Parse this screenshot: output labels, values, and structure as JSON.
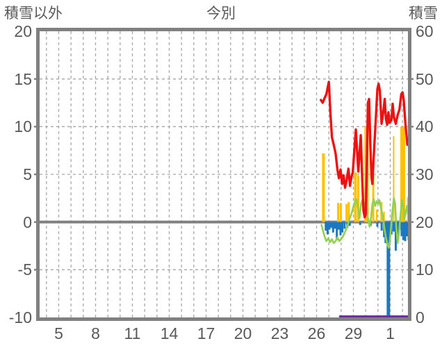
{
  "header": {
    "left_axis_label": "積雪以外",
    "title": "今別",
    "right_axis_label": "積雪"
  },
  "colors": {
    "frame": "#808080",
    "gridline": "#a6a6a6",
    "zero_line": "#808080",
    "text": "#595959",
    "red": "#ee1111",
    "green": "#92d050",
    "blue": "#1b78c3",
    "yellow": "#ffc000",
    "purple": "#7030a0"
  },
  "chart_data": {
    "type": "combo line+bar",
    "title": "今別",
    "left_axis": {
      "label": "積雪以外",
      "min": -10,
      "max": 20,
      "tick_values": [
        20,
        15,
        10,
        5,
        0,
        -5,
        -10
      ],
      "grid_values": [
        15,
        10,
        5,
        -5
      ],
      "zero_value": 0
    },
    "right_axis": {
      "label": "積雪",
      "min": 0,
      "max": 60,
      "tick_values": [
        60,
        50,
        40,
        30,
        20,
        10,
        0
      ]
    },
    "x_axis": {
      "ticks": [
        {
          "day": 5,
          "label": "5"
        },
        {
          "day": 8,
          "label": "8"
        },
        {
          "day": 11,
          "label": "11"
        },
        {
          "day": 14,
          "label": "14"
        },
        {
          "day": 17,
          "label": "17"
        },
        {
          "day": 20,
          "label": "20"
        },
        {
          "day": 23,
          "label": "23"
        },
        {
          "day": 26,
          "label": "26"
        },
        {
          "day": 29,
          "label": "29"
        },
        {
          "day": 32,
          "label": "1"
        }
      ],
      "grid_day_start": 4,
      "grid_day_end": 33,
      "domain": [
        3.44,
        33.44
      ]
    },
    "series": [
      {
        "name": "yellow-bars",
        "type": "bar",
        "axis": "left",
        "color": "#ffc000",
        "default_width": 3,
        "points": [
          [
            26.56,
            7.2,
            4
          ],
          [
            27.76,
            2.0,
            3
          ],
          [
            27.98,
            2.0,
            3
          ],
          [
            28.44,
            1.9,
            3
          ],
          [
            28.62,
            2.1,
            3
          ],
          [
            29.17,
            5.2,
            4
          ],
          [
            29.4,
            4.9,
            3
          ],
          [
            30.07,
            10.0,
            6
          ],
          [
            30.62,
            5.0,
            3
          ],
          [
            30.9,
            1.3,
            2
          ],
          [
            31.28,
            2.1,
            3
          ],
          [
            31.5,
            1.1,
            2
          ],
          [
            32.28,
            9.0,
            2
          ],
          [
            33.02,
            10.0,
            7
          ],
          [
            33.45,
            2.6,
            3
          ]
        ]
      },
      {
        "name": "blue-bars",
        "type": "bar",
        "axis": "left",
        "color": "#1b78c3",
        "default_width": 3,
        "points": [
          [
            26.75,
            -0.9
          ],
          [
            26.9,
            -1.3
          ],
          [
            27.05,
            -0.8
          ],
          [
            27.2,
            -0.6
          ],
          [
            27.35,
            -1.1
          ],
          [
            27.5,
            -0.7
          ],
          [
            27.65,
            -1.9
          ],
          [
            27.8,
            -0.8
          ],
          [
            27.95,
            -1.4
          ],
          [
            28.1,
            -1.1
          ],
          [
            28.28,
            -0.7
          ],
          [
            28.5,
            -0.6
          ],
          [
            28.7,
            -0.4
          ],
          [
            29.55,
            -0.3
          ],
          [
            30.4,
            -0.4
          ],
          [
            30.95,
            -0.5
          ],
          [
            31.3,
            -0.9
          ],
          [
            31.5,
            -1.6
          ],
          [
            31.62,
            -2.2
          ],
          [
            31.75,
            -2.3
          ],
          [
            31.85,
            -9.85,
            5
          ],
          [
            31.97,
            -2.1
          ],
          [
            32.1,
            -1.3
          ],
          [
            32.28,
            -1.0
          ],
          [
            32.45,
            -3.0
          ],
          [
            32.6,
            -1.3
          ],
          [
            32.75,
            -0.8
          ],
          [
            32.93,
            -1.5
          ],
          [
            33.08,
            -1.9
          ],
          [
            33.22,
            -2.0
          ],
          [
            33.36,
            -1.5
          ],
          [
            33.5,
            -1.9
          ]
        ]
      },
      {
        "name": "purple-line",
        "type": "line",
        "axis": "right",
        "color": "#7030a0",
        "width": 3,
        "points": [
          [
            27.9,
            0
          ],
          [
            33.5,
            0
          ]
        ]
      },
      {
        "name": "green-line",
        "type": "line",
        "axis": "left",
        "color": "#92d050",
        "width": 2.6,
        "points": [
          [
            26.4,
            -0.3
          ],
          [
            26.52,
            -0.9
          ],
          [
            26.65,
            -1.5
          ],
          [
            26.8,
            -2.0
          ],
          [
            26.95,
            -1.7
          ],
          [
            27.1,
            -2.1
          ],
          [
            27.25,
            -1.8
          ],
          [
            27.4,
            -2.2
          ],
          [
            27.55,
            -2.0
          ],
          [
            27.7,
            -1.6
          ],
          [
            27.85,
            -2.0
          ],
          [
            28.0,
            -1.8
          ],
          [
            28.15,
            -1.5
          ],
          [
            28.3,
            -1.1
          ],
          [
            28.42,
            -0.7
          ],
          [
            28.55,
            -0.2
          ],
          [
            28.7,
            0.4
          ],
          [
            28.85,
            0.9
          ],
          [
            29.0,
            1.6
          ],
          [
            29.12,
            2.1
          ],
          [
            29.25,
            2.4
          ],
          [
            29.38,
            1.5
          ],
          [
            29.5,
            0.4
          ],
          [
            29.62,
            1.9
          ],
          [
            29.72,
            2.3
          ],
          [
            29.85,
            1.6
          ],
          [
            29.95,
            2.1
          ],
          [
            30.08,
            1.2
          ],
          [
            30.2,
            0.3
          ],
          [
            30.32,
            -0.5
          ],
          [
            30.45,
            0.6
          ],
          [
            30.55,
            1.9
          ],
          [
            30.65,
            2.4
          ],
          [
            30.78,
            1.7
          ],
          [
            30.9,
            2.2
          ],
          [
            31.02,
            1.9
          ],
          [
            31.12,
            2.3
          ],
          [
            31.25,
            1.4
          ],
          [
            31.4,
            0.7
          ],
          [
            31.52,
            -0.6
          ],
          [
            31.65,
            -1.6
          ],
          [
            31.78,
            -2.4
          ],
          [
            31.88,
            -2.7
          ],
          [
            31.97,
            -1.9
          ],
          [
            32.07,
            -0.5
          ],
          [
            32.18,
            1.2
          ],
          [
            32.3,
            2.5
          ],
          [
            32.4,
            1.9
          ],
          [
            32.5,
            -0.6
          ],
          [
            32.6,
            -2.2
          ],
          [
            32.7,
            -1.3
          ],
          [
            32.82,
            0.5
          ],
          [
            32.95,
            2.3
          ],
          [
            33.05,
            1.8
          ],
          [
            33.15,
            0.3
          ],
          [
            33.25,
            0.9
          ],
          [
            33.35,
            1.7
          ],
          [
            33.45,
            0.8
          ],
          [
            33.55,
            1.1
          ]
        ]
      },
      {
        "name": "red-line",
        "type": "line",
        "axis": "left",
        "color": "#ee1111",
        "width": 3.4,
        "points": [
          [
            26.35,
            12.8
          ],
          [
            26.5,
            12.5
          ],
          [
            26.62,
            12.9
          ],
          [
            26.8,
            13.4
          ],
          [
            27.0,
            14.7
          ],
          [
            27.12,
            11.6
          ],
          [
            27.25,
            8.9
          ],
          [
            27.4,
            8.1
          ],
          [
            27.55,
            7.2
          ],
          [
            27.7,
            5.5
          ],
          [
            27.82,
            4.6
          ],
          [
            27.95,
            5.5
          ],
          [
            28.08,
            4.0
          ],
          [
            28.2,
            4.9
          ],
          [
            28.32,
            3.6
          ],
          [
            28.45,
            4.4
          ],
          [
            28.6,
            5.6
          ],
          [
            28.72,
            3.8
          ],
          [
            28.85,
            4.8
          ],
          [
            28.95,
            5.2
          ],
          [
            29.2,
            9.7
          ],
          [
            29.4,
            5.3
          ],
          [
            29.6,
            9.1
          ],
          [
            29.72,
            4.5
          ],
          [
            29.82,
            1.2
          ],
          [
            29.92,
            0.5
          ],
          [
            30.0,
            0.8
          ],
          [
            30.08,
            5.0
          ],
          [
            30.18,
            12.5
          ],
          [
            30.28,
            12.9
          ],
          [
            30.38,
            8.0
          ],
          [
            30.48,
            4.6
          ],
          [
            30.55,
            4.0
          ],
          [
            30.65,
            6.8
          ],
          [
            30.8,
            10.2
          ],
          [
            30.95,
            13.9
          ],
          [
            31.05,
            14.5
          ],
          [
            31.15,
            13.8
          ],
          [
            31.3,
            10.3
          ],
          [
            31.45,
            11.7
          ],
          [
            31.55,
            12.9
          ],
          [
            31.65,
            10.8
          ],
          [
            31.75,
            10.2
          ],
          [
            31.85,
            11.5
          ],
          [
            31.95,
            10.4
          ],
          [
            32.1,
            10.7
          ],
          [
            32.2,
            12.4
          ],
          [
            32.3,
            11.0
          ],
          [
            32.45,
            10.3
          ],
          [
            32.6,
            11.2
          ],
          [
            32.75,
            11.8
          ],
          [
            32.9,
            13.4
          ],
          [
            33.0,
            13.6
          ],
          [
            33.1,
            12.8
          ],
          [
            33.25,
            10.1
          ],
          [
            33.4,
            8.1
          ],
          [
            33.55,
            8.5
          ]
        ]
      }
    ]
  }
}
